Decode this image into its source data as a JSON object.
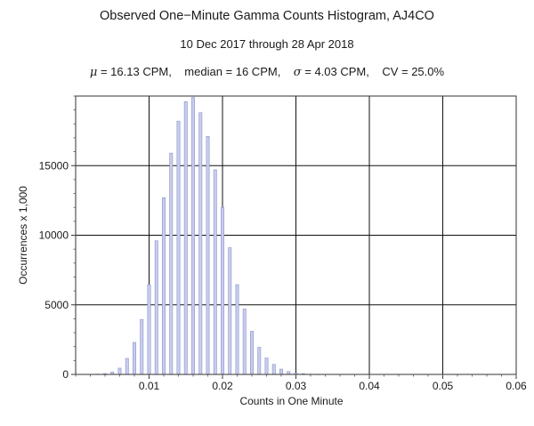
{
  "chart_data": {
    "type": "bar",
    "title": "Observed One−Minute Gamma Counts Histogram, AJ4CO",
    "subtitle": "10 Dec 2017 through 28 Apr 2018",
    "stats": {
      "mu_symbol": "μ",
      "mu_text": " = 16.13 CPM,",
      "median_text": "median = 16 CPM,",
      "sigma_symbol": "σ",
      "sigma_text": " = 4.03 CPM,",
      "cv_text": "CV = 25.0%"
    },
    "xlabel": "Counts in One Minute",
    "ylabel": "Occurrences x 1,000",
    "xlim": [
      0.0,
      0.06
    ],
    "ylim": [
      0,
      20000
    ],
    "x_ticks": [
      0.01,
      0.02,
      0.03,
      0.04,
      0.05,
      0.06
    ],
    "x_tick_labels": [
      "0.01",
      "0.02",
      "0.03",
      "0.04",
      "0.05",
      "0.06"
    ],
    "y_ticks": [
      0,
      5000,
      10000,
      15000
    ],
    "y_tick_labels": [
      "0",
      "5000",
      "10000",
      "15000"
    ],
    "grid": true,
    "bar_color": "#c8cdee",
    "bar_edge": "#8a92c8",
    "bar_width": 0.0004,
    "bars": [
      {
        "x": 0.003,
        "y": 20
      },
      {
        "x": 0.004,
        "y": 60
      },
      {
        "x": 0.005,
        "y": 180
      },
      {
        "x": 0.006,
        "y": 450
      },
      {
        "x": 0.007,
        "y": 1150
      },
      {
        "x": 0.008,
        "y": 2300
      },
      {
        "x": 0.009,
        "y": 3950
      },
      {
        "x": 0.01,
        "y": 6450
      },
      {
        "x": 0.011,
        "y": 9600
      },
      {
        "x": 0.012,
        "y": 12700
      },
      {
        "x": 0.013,
        "y": 15900
      },
      {
        "x": 0.014,
        "y": 18200
      },
      {
        "x": 0.015,
        "y": 19600
      },
      {
        "x": 0.016,
        "y": 19900
      },
      {
        "x": 0.017,
        "y": 18800
      },
      {
        "x": 0.018,
        "y": 17100
      },
      {
        "x": 0.019,
        "y": 14700
      },
      {
        "x": 0.02,
        "y": 12000
      },
      {
        "x": 0.021,
        "y": 9100
      },
      {
        "x": 0.022,
        "y": 6450
      },
      {
        "x": 0.023,
        "y": 4700
      },
      {
        "x": 0.024,
        "y": 3100
      },
      {
        "x": 0.025,
        "y": 1950
      },
      {
        "x": 0.026,
        "y": 1180
      },
      {
        "x": 0.027,
        "y": 720
      },
      {
        "x": 0.028,
        "y": 380
      },
      {
        "x": 0.029,
        "y": 200
      },
      {
        "x": 0.03,
        "y": 100
      },
      {
        "x": 0.031,
        "y": 50
      },
      {
        "x": 0.032,
        "y": 20
      },
      {
        "x": 0.033,
        "y": 10
      }
    ]
  }
}
